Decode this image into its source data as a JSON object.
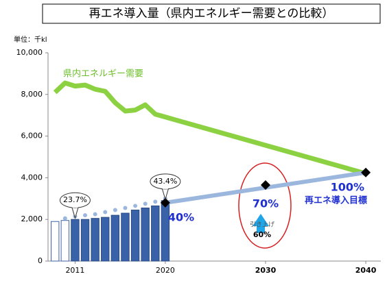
{
  "chart_data": {
    "type": "bar",
    "title": "再エネ導入量（県内エネルギー需要との比較）",
    "unit": "単位：千kl",
    "xlim": [
      2008.3,
      2041.5
    ],
    "xticks": [
      2011,
      2020,
      2030,
      2040
    ],
    "ylim": [
      0,
      10000
    ],
    "yticks": [
      0,
      {
        "value": 2000,
        "label": "2,000"
      },
      {
        "value": 4000,
        "label": "4,000"
      },
      {
        "value": 6000,
        "label": "6,000"
      },
      {
        "value": 8000,
        "label": "8,000"
      },
      {
        "value": 10000,
        "label": "10,000"
      }
    ],
    "series": [
      {
        "kind": "bar",
        "color": "#ffffff",
        "stroke": "#3a62a8",
        "x": [
          2009,
          2010
        ],
        "values": [
          1900,
          1950
        ]
      },
      {
        "kind": "bar",
        "color": "#3a62a8",
        "stroke": "#2a4a85",
        "x": [
          2011,
          2012,
          2013,
          2014,
          2015,
          2016,
          2017,
          2018,
          2019,
          2020
        ],
        "values": [
          2000,
          2000,
          2050,
          2100,
          2200,
          2300,
          2450,
          2550,
          2650,
          2900
        ]
      },
      {
        "kind": "dots",
        "color": "#9bb7de",
        "x": [
          2010,
          2011,
          2012,
          2013,
          2014,
          2015,
          2016,
          2017,
          2018,
          2019,
          2020
        ],
        "values": [
          2050,
          2150,
          2200,
          2250,
          2350,
          2450,
          2550,
          2650,
          2750,
          2850,
          3000
        ]
      },
      {
        "kind": "line",
        "name": "県内エネルギー需要",
        "color": "#8cd142",
        "x": [
          2009,
          2010,
          2011,
          2012,
          2013,
          2014,
          2015,
          2016,
          2017,
          2018,
          2019,
          2040
        ],
        "values": [
          8100,
          8550,
          8400,
          8450,
          8250,
          8150,
          7600,
          7200,
          7250,
          7500,
          7050,
          4200
        ]
      },
      {
        "kind": "line",
        "name": "再エネ導入目標",
        "color": "#9bb7de",
        "x": [
          2020,
          2040
        ],
        "values": [
          2800,
          4250
        ]
      },
      {
        "kind": "diamond",
        "color": "#000000",
        "x": [
          2020,
          2030,
          2040
        ],
        "values": [
          2800,
          3650,
          4250
        ],
        "value_labels": [
          "40%",
          "70%",
          "100%"
        ]
      }
    ],
    "callouts": [
      {
        "x": 2011,
        "value": 2000,
        "label": "23.7%"
      },
      {
        "x": 2020,
        "value": 2900,
        "label": "43.4%"
      }
    ],
    "annotations": [
      "引き上げ",
      "60%"
    ]
  }
}
